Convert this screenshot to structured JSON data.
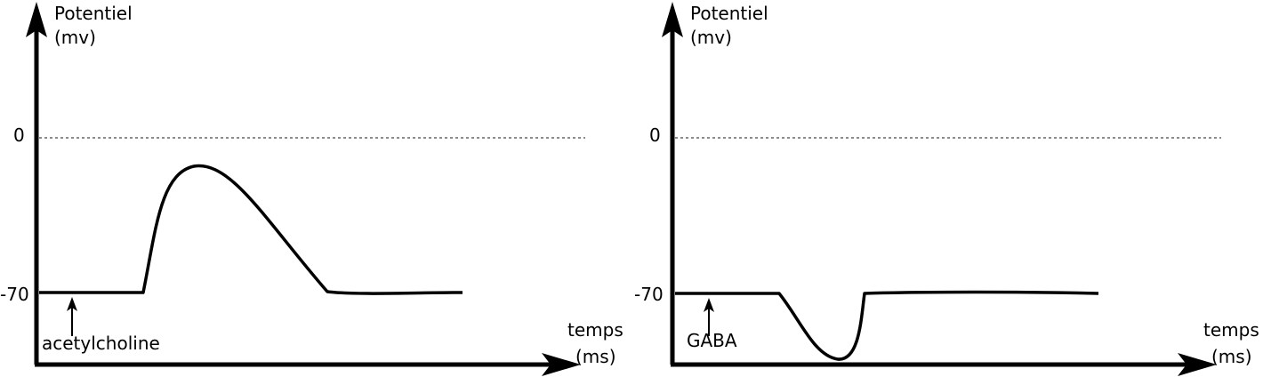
{
  "chart_data": [
    {
      "type": "line",
      "ylabel_line1": "Potentiel",
      "ylabel_line2": "(mv)",
      "xlabel_line1": "temps",
      "xlabel_line2": "(ms)",
      "yticks": [
        {
          "value": 0,
          "label": "0"
        },
        {
          "value": -70,
          "label": "-70"
        }
      ],
      "reference_line": {
        "value": 0,
        "style": "dotted"
      },
      "stimulus": {
        "label": "acetylcholine",
        "at": "start"
      },
      "series": [
        {
          "shape": "depolarization (peak above baseline)",
          "baseline": -70,
          "peak": -13
        }
      ]
    },
    {
      "type": "line",
      "ylabel_line1": "Potentiel",
      "ylabel_line2": "(mv)",
      "xlabel_line1": "temps",
      "xlabel_line2": "(ms)",
      "yticks": [
        {
          "value": 0,
          "label": "0"
        },
        {
          "value": -70,
          "label": "-70"
        }
      ],
      "reference_line": {
        "value": 0,
        "style": "dotted"
      },
      "stimulus": {
        "label": "GABA",
        "at": "start"
      },
      "series": [
        {
          "shape": "hyperpolarization (dip below baseline)",
          "baseline": -70,
          "trough": -100
        }
      ]
    }
  ]
}
